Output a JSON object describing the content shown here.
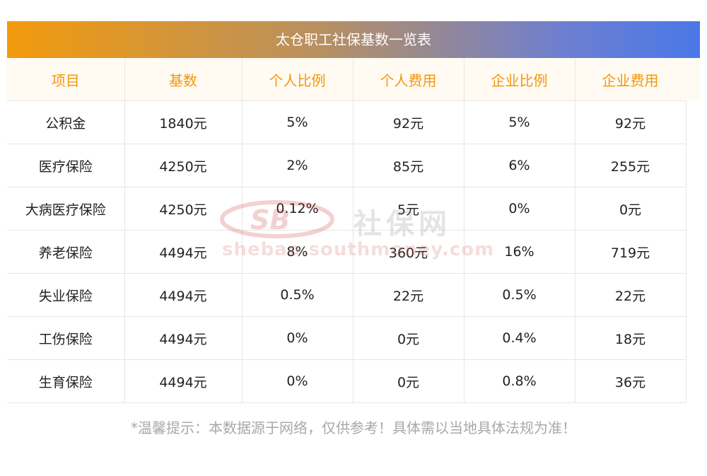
{
  "title": "太仓职工社保基数一览表",
  "columns": [
    "项目",
    "基数",
    "个人比例",
    "个人费用",
    "企业比例",
    "企业费用"
  ],
  "rows": [
    [
      "公积金",
      "1840元",
      "5%",
      "92元",
      "5%",
      "92元"
    ],
    [
      "医疗保险",
      "4250元",
      "2%",
      "85元",
      "6%",
      "255元"
    ],
    [
      "大病医疗保险",
      "4250元",
      "0.12%",
      "5元",
      "0%",
      "0元"
    ],
    [
      "养老保险",
      "4494元",
      "8%",
      "360元",
      "16%",
      "719元"
    ],
    [
      "失业保险",
      "4494元",
      "0.5%",
      "22元",
      "0.5%",
      "22元"
    ],
    [
      "工伤保险",
      "4494元",
      "0%",
      "0元",
      "0.4%",
      "18元"
    ],
    [
      "生育保险",
      "4494元",
      "0%",
      "0元",
      "0.8%",
      "36元"
    ]
  ],
  "note": "*温馨提示：本数据源于网络，仅供参考！具体需以当地具体法规为准！",
  "watermark": {
    "logo_text": "SB",
    "cn_text": "社保网",
    "url_text": "shebao.southmoney.com"
  },
  "colors": {
    "gradient_start": "#f39a0c",
    "gradient_end": "#4a78e8",
    "header_text": "#f5960a",
    "note_text": "#a8a8a8"
  }
}
